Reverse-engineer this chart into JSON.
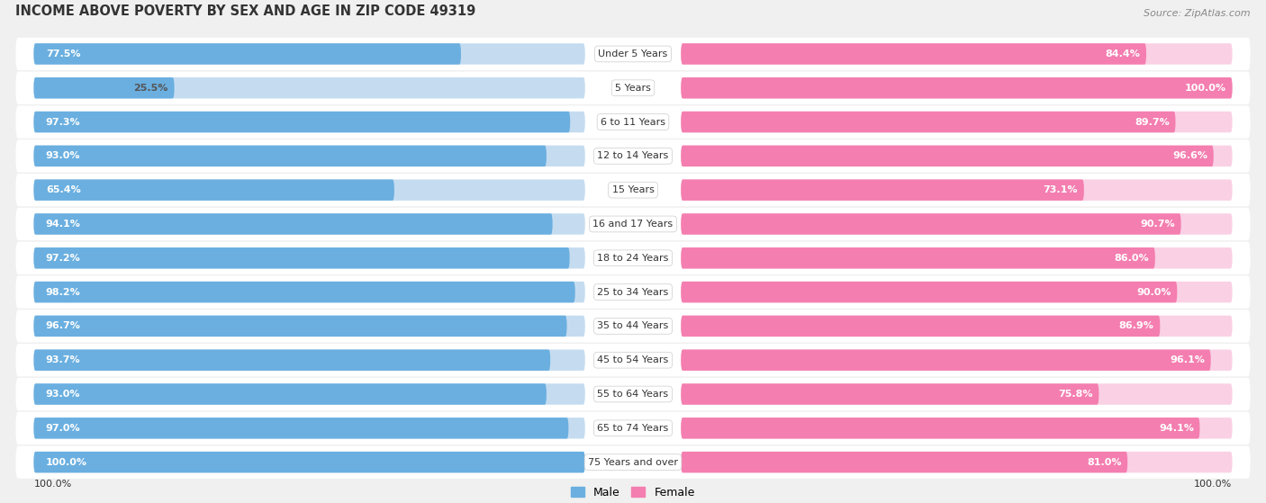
{
  "title": "INCOME ABOVE POVERTY BY SEX AND AGE IN ZIP CODE 49319",
  "source": "Source: ZipAtlas.com",
  "categories": [
    "Under 5 Years",
    "5 Years",
    "6 to 11 Years",
    "12 to 14 Years",
    "15 Years",
    "16 and 17 Years",
    "18 to 24 Years",
    "25 to 34 Years",
    "35 to 44 Years",
    "45 to 54 Years",
    "55 to 64 Years",
    "65 to 74 Years",
    "75 Years and over"
  ],
  "male_values": [
    77.5,
    25.5,
    97.3,
    93.0,
    65.4,
    94.1,
    97.2,
    98.2,
    96.7,
    93.7,
    93.0,
    97.0,
    100.0
  ],
  "female_values": [
    84.4,
    100.0,
    89.7,
    96.6,
    73.1,
    90.7,
    86.0,
    90.0,
    86.9,
    96.1,
    75.8,
    94.1,
    81.0
  ],
  "male_color": "#6aafe0",
  "male_color_light": "#c5dcf0",
  "female_color": "#f47eb0",
  "female_color_light": "#fad0e4",
  "bg_color": "#f0f0f0",
  "row_bg_color": "#ffffff",
  "title_color": "#333333",
  "label_color": "#333333",
  "source_color": "#888888",
  "bottom_label_male": "100.0%",
  "bottom_label_female": "100.0%",
  "legend_male": "Male",
  "legend_female": "Female"
}
